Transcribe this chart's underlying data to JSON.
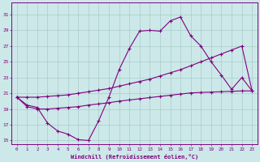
{
  "xlabel": "Windchill (Refroidissement éolien,°C)",
  "bg_color": "#cce8e8",
  "line_color": "#800080",
  "grid_color": "#aacccc",
  "xlim": [
    -0.5,
    23.5
  ],
  "ylim": [
    14.5,
    32.5
  ],
  "xticks": [
    0,
    1,
    2,
    3,
    4,
    5,
    6,
    7,
    8,
    9,
    10,
    11,
    12,
    13,
    14,
    15,
    16,
    17,
    18,
    19,
    20,
    21,
    22,
    23
  ],
  "yticks": [
    15,
    17,
    19,
    21,
    23,
    25,
    27,
    29,
    31
  ],
  "curve1_x": [
    0,
    1,
    2,
    3,
    4,
    5,
    6,
    7,
    8,
    9,
    10,
    11,
    12,
    13,
    14,
    15,
    16,
    17,
    18,
    19,
    20,
    21,
    22,
    23
  ],
  "curve1_y": [
    20.5,
    19.5,
    19.2,
    17.2,
    16.2,
    15.8,
    15.1,
    15.0,
    17.5,
    20.5,
    24.0,
    26.7,
    28.9,
    29.0,
    28.9,
    30.2,
    30.7,
    28.3,
    27.0,
    25.0,
    23.3,
    21.5,
    23.0,
    21.3
  ],
  "curve2_x": [
    0,
    1,
    2,
    3,
    4,
    5,
    6,
    7,
    8,
    9,
    10,
    11,
    12,
    13,
    14,
    15,
    16,
    17,
    18,
    19,
    20,
    21,
    22,
    23
  ],
  "curve2_y": [
    20.5,
    20.5,
    20.5,
    20.6,
    20.7,
    20.8,
    21.0,
    21.2,
    21.4,
    21.6,
    21.9,
    22.2,
    22.5,
    22.8,
    23.2,
    23.6,
    24.0,
    24.5,
    25.0,
    25.5,
    26.0,
    26.5,
    27.0,
    21.3
  ],
  "curve3_x": [
    0,
    1,
    2,
    3,
    4,
    5,
    6,
    7,
    8,
    9,
    10,
    11,
    12,
    13,
    14,
    15,
    16,
    17,
    18,
    19,
    20,
    21,
    22,
    23
  ],
  "curve3_y": [
    20.5,
    19.3,
    19.0,
    19.0,
    19.1,
    19.2,
    19.3,
    19.5,
    19.65,
    19.8,
    20.0,
    20.15,
    20.3,
    20.45,
    20.6,
    20.75,
    20.9,
    21.05,
    21.1,
    21.15,
    21.2,
    21.25,
    21.3,
    21.3
  ]
}
